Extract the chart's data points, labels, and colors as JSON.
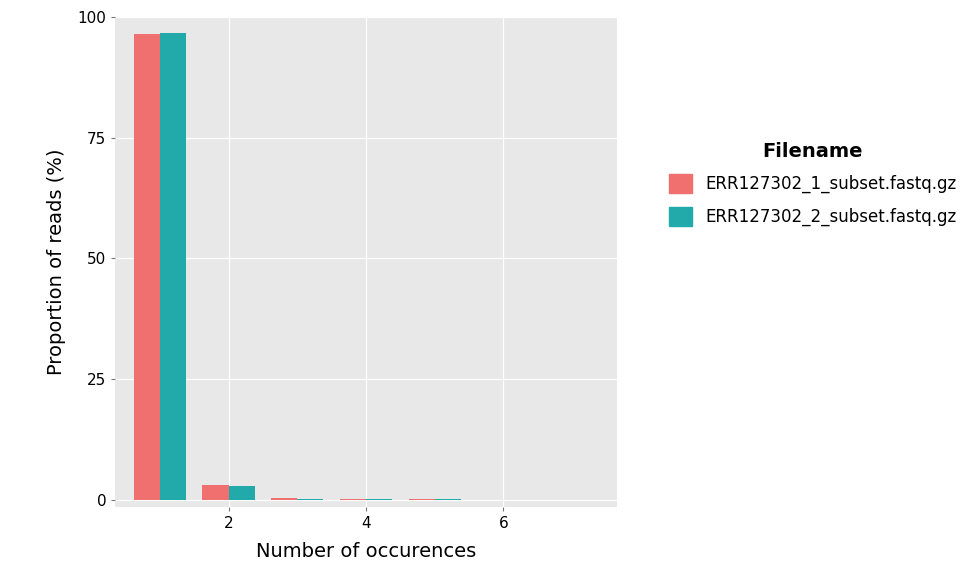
{
  "title": "",
  "xlabel": "Number of occurences",
  "ylabel": "Proportion of reads (%)",
  "legend_title": "Filename",
  "series": [
    {
      "name": "ERR127302_1_subset.fastq.gz",
      "color": "#F07070",
      "values": [
        96.5,
        3.0,
        0.3,
        0.08,
        0.04,
        0.02,
        0.01,
        0.005
      ]
    },
    {
      "name": "ERR127302_2_subset.fastq.gz",
      "color": "#22AAAA",
      "values": [
        96.8,
        2.8,
        0.2,
        0.07,
        0.03,
        0.015,
        0.008,
        0.004
      ]
    }
  ],
  "x_positions": [
    1,
    2,
    3,
    4,
    5,
    6,
    7,
    8
  ],
  "xlim": [
    0.35,
    7.65
  ],
  "ylim": [
    -1.5,
    100
  ],
  "yticks": [
    0,
    25,
    50,
    75,
    100
  ],
  "xticks": [
    2,
    4,
    6
  ],
  "bar_width": 0.38,
  "plot_bg_color": "#E8E8E8",
  "fig_bg_color": "#FFFFFF",
  "grid_color": "#FFFFFF",
  "axis_fontsize": 14,
  "tick_fontsize": 11,
  "legend_fontsize": 12,
  "legend_title_fontsize": 14
}
